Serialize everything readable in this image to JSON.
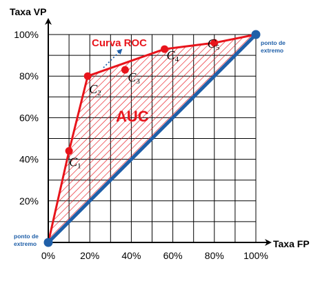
{
  "chart_data": {
    "type": "line",
    "xlabel": "Taxa FP",
    "ylabel": "Taxa VP",
    "xlim": [
      0,
      100
    ],
    "ylim": [
      0,
      100
    ],
    "x_ticks": [
      "0%",
      "20%",
      "40%",
      "60%",
      "80%",
      "100%"
    ],
    "y_ticks": [
      "20%",
      "40%",
      "60%",
      "80%",
      "100%"
    ],
    "x_tick_values": [
      0,
      20,
      40,
      60,
      80,
      100
    ],
    "y_tick_values": [
      20,
      40,
      60,
      80,
      100
    ],
    "grid": true,
    "roc_label": "Curva ROC",
    "auc_label": "AUC",
    "points": [
      {
        "name": "C",
        "sub": "1",
        "x": 10,
        "y": 44
      },
      {
        "name": "C",
        "sub": "2",
        "x": 19,
        "y": 80
      },
      {
        "name": "C",
        "sub": "3",
        "x": 37,
        "y": 83
      },
      {
        "name": "C",
        "sub": "4",
        "x": 56,
        "y": 93
      },
      {
        "name": "C",
        "sub": "5",
        "x": 80,
        "y": 96
      }
    ],
    "roc_curve": [
      [
        0,
        0
      ],
      [
        10,
        44
      ],
      [
        19,
        80
      ],
      [
        56,
        93
      ],
      [
        80,
        96
      ],
      [
        100,
        100
      ]
    ],
    "endpoints": [
      {
        "x": 0,
        "y": 0,
        "label_line1": "ponto de",
        "label_line2": "extremo"
      },
      {
        "x": 100,
        "y": 100,
        "label_line1": "ponto de",
        "label_line2": "extremo"
      }
    ],
    "colors": {
      "roc": "#e8141b",
      "diagonal": "#1f5fa8",
      "endpoint": "#1f5fa8",
      "grid": "#000000",
      "arrow": "#1f5fa8"
    }
  }
}
